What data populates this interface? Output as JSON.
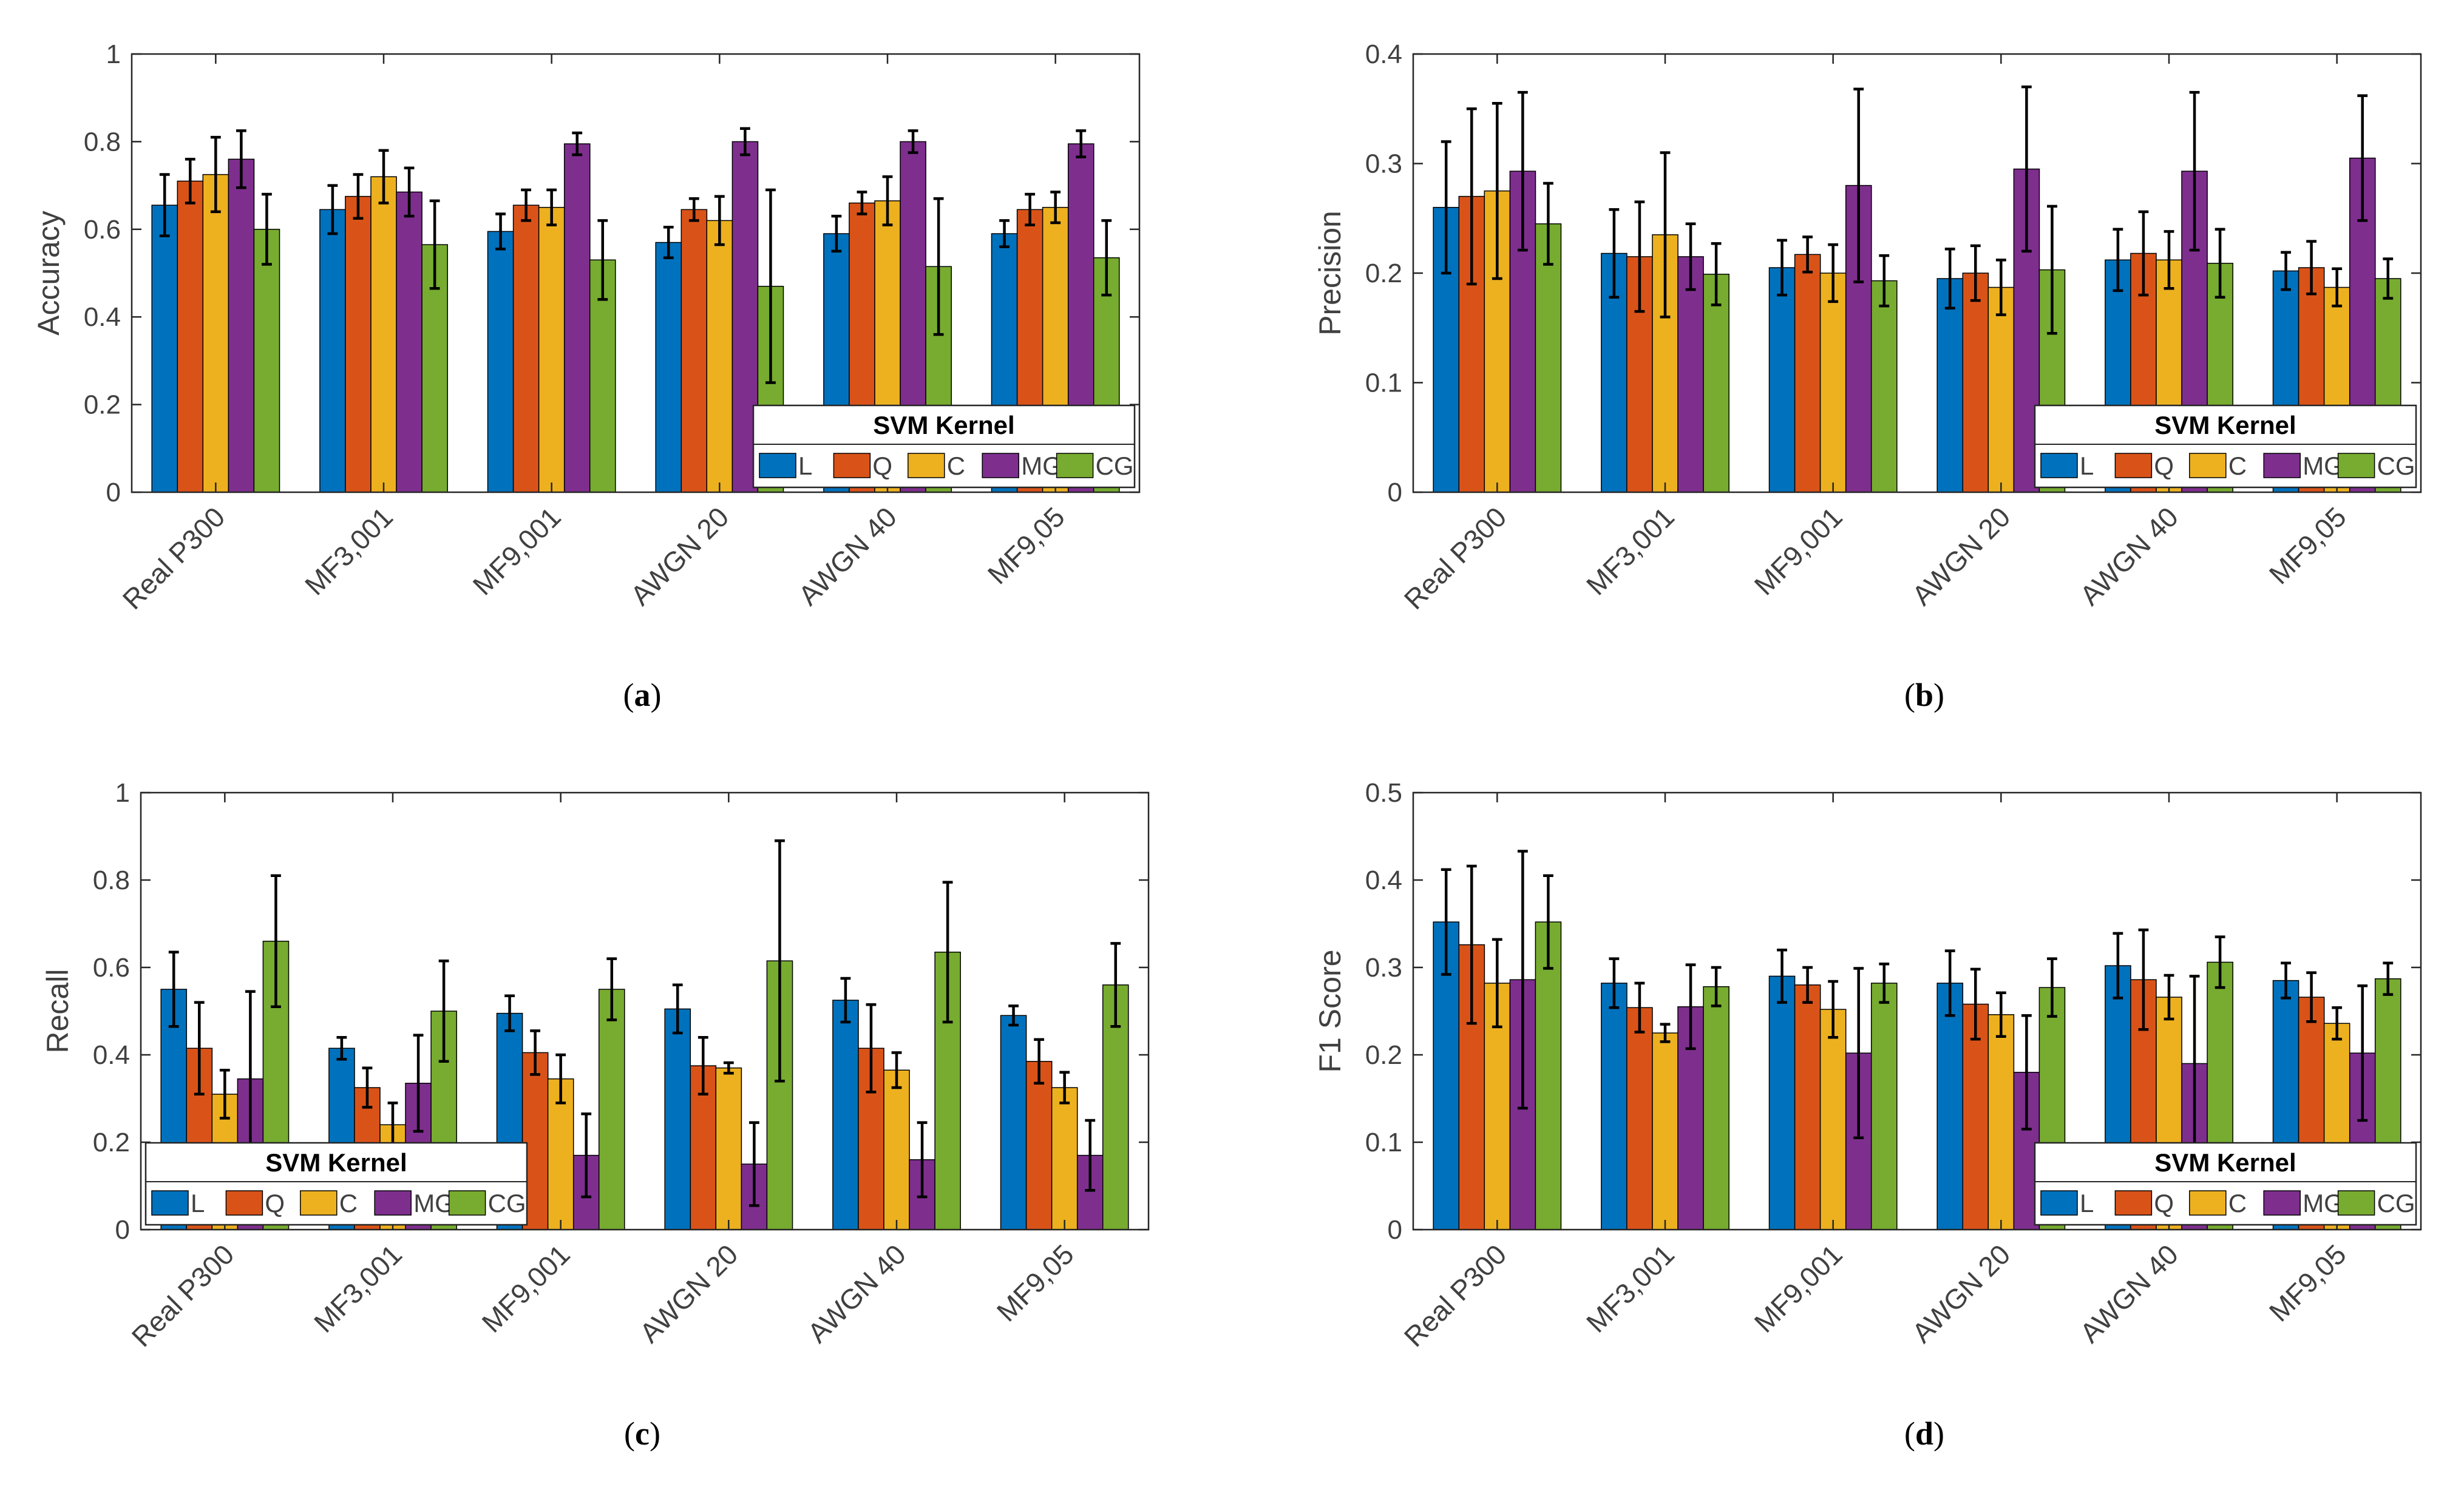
{
  "figure": {
    "legend_title": "SVM Kernel",
    "colors": {
      "L": "#0072BD",
      "Q": "#D95319",
      "C": "#EDB120",
      "MG": "#7E2F8E",
      "CG": "#77AC30",
      "axes_bg": "#ffffff",
      "axis": "#262626",
      "grid_text": "#404040"
    }
  },
  "chart_data": [
    {
      "type": "bar",
      "id": "a",
      "caption": "(a)",
      "caption_letter": "a",
      "ylabel": "Accuracy",
      "xlabel": "",
      "ylim": [
        0,
        1
      ],
      "yticks": [
        0,
        0.2,
        0.4,
        0.6,
        0.8,
        1
      ],
      "ytick_labels": [
        "0",
        "0.2",
        "0.4",
        "0.6",
        "0.8",
        "1"
      ],
      "categories": [
        "Real P300",
        "MF3,001",
        "MF9,001",
        "AWGN 20",
        "AWGN 40",
        "MF9,05"
      ],
      "legend": {
        "title": "SVM Kernel",
        "location": "bottom-right",
        "entries": [
          "L",
          "Q",
          "C",
          "MG",
          "CG"
        ]
      },
      "series": [
        {
          "name": "L",
          "values": [
            0.655,
            0.645,
            0.595,
            0.57,
            0.59,
            0.59
          ],
          "err": [
            0.07,
            0.055,
            0.04,
            0.035,
            0.04,
            0.03
          ]
        },
        {
          "name": "Q",
          "values": [
            0.71,
            0.675,
            0.655,
            0.645,
            0.66,
            0.645
          ],
          "err": [
            0.05,
            0.05,
            0.035,
            0.025,
            0.025,
            0.035
          ]
        },
        {
          "name": "C",
          "values": [
            0.725,
            0.72,
            0.65,
            0.62,
            0.665,
            0.65
          ],
          "err": [
            0.085,
            0.06,
            0.04,
            0.055,
            0.055,
            0.035
          ]
        },
        {
          "name": "MG",
          "values": [
            0.76,
            0.685,
            0.795,
            0.8,
            0.8,
            0.795
          ],
          "err": [
            0.065,
            0.055,
            0.025,
            0.03,
            0.025,
            0.03
          ]
        },
        {
          "name": "CG",
          "values": [
            0.6,
            0.565,
            0.53,
            0.47,
            0.515,
            0.535
          ],
          "err": [
            0.08,
            0.1,
            0.09,
            0.22,
            0.155,
            0.085
          ]
        }
      ]
    },
    {
      "type": "bar",
      "id": "b",
      "caption": "(b)",
      "caption_letter": "b",
      "ylabel": "Precision",
      "xlabel": "",
      "ylim": [
        0,
        0.4
      ],
      "yticks": [
        0,
        0.1,
        0.2,
        0.3,
        0.4
      ],
      "ytick_labels": [
        "0",
        "0.1",
        "0.2",
        "0.3",
        "0.4"
      ],
      "categories": [
        "Real P300",
        "MF3,001",
        "MF9,001",
        "AWGN 20",
        "AWGN 40",
        "MF9,05"
      ],
      "legend": {
        "title": "SVM Kernel",
        "location": "bottom-right",
        "entries": [
          "L",
          "Q",
          "C",
          "MG",
          "CG"
        ]
      },
      "series": [
        {
          "name": "L",
          "values": [
            0.26,
            0.218,
            0.205,
            0.195,
            0.212,
            0.202
          ],
          "err": [
            0.06,
            0.04,
            0.025,
            0.027,
            0.028,
            0.017
          ]
        },
        {
          "name": "Q",
          "values": [
            0.27,
            0.215,
            0.217,
            0.2,
            0.218,
            0.205
          ],
          "err": [
            0.08,
            0.05,
            0.016,
            0.025,
            0.038,
            0.024
          ]
        },
        {
          "name": "C",
          "values": [
            0.275,
            0.235,
            0.2,
            0.187,
            0.212,
            0.187
          ],
          "err": [
            0.08,
            0.075,
            0.026,
            0.025,
            0.026,
            0.017
          ]
        },
        {
          "name": "MG",
          "values": [
            0.293,
            0.215,
            0.28,
            0.295,
            0.293,
            0.305
          ],
          "err": [
            0.072,
            0.03,
            0.088,
            0.075,
            0.072,
            0.057
          ]
        },
        {
          "name": "CG",
          "values": [
            0.245,
            0.199,
            0.193,
            0.203,
            0.209,
            0.195
          ],
          "err": [
            0.037,
            0.028,
            0.023,
            0.058,
            0.031,
            0.018
          ]
        }
      ]
    },
    {
      "type": "bar",
      "id": "c",
      "caption": "(c)",
      "caption_letter": "c",
      "ylabel": "Recall",
      "xlabel": "",
      "ylim": [
        0,
        1
      ],
      "yticks": [
        0,
        0.2,
        0.4,
        0.6,
        0.8,
        1
      ],
      "ytick_labels": [
        "0",
        "0.2",
        "0.4",
        "0.6",
        "0.8",
        "1"
      ],
      "categories": [
        "Real P300",
        "MF3,001",
        "MF9,001",
        "AWGN 20",
        "AWGN 40",
        "MF9,05"
      ],
      "legend": {
        "title": "SVM Kernel",
        "location": "bottom-left",
        "entries": [
          "L",
          "Q",
          "C",
          "MG",
          "CG"
        ]
      },
      "series": [
        {
          "name": "L",
          "values": [
            0.55,
            0.415,
            0.495,
            0.505,
            0.525,
            0.49
          ],
          "err": [
            0.085,
            0.025,
            0.04,
            0.055,
            0.05,
            0.022
          ]
        },
        {
          "name": "Q",
          "values": [
            0.415,
            0.325,
            0.405,
            0.375,
            0.415,
            0.385
          ],
          "err": [
            0.105,
            0.045,
            0.05,
            0.065,
            0.1,
            0.05
          ]
        },
        {
          "name": "C",
          "values": [
            0.31,
            0.24,
            0.345,
            0.37,
            0.365,
            0.325
          ],
          "err": [
            0.055,
            0.05,
            0.055,
            0.012,
            0.04,
            0.035
          ]
        },
        {
          "name": "MG",
          "values": [
            0.345,
            0.335,
            0.17,
            0.15,
            0.16,
            0.17
          ],
          "err": [
            0.2,
            0.11,
            0.095,
            0.095,
            0.085,
            0.08
          ]
        },
        {
          "name": "CG",
          "values": [
            0.66,
            0.5,
            0.55,
            0.615,
            0.635,
            0.56
          ],
          "err": [
            0.15,
            0.115,
            0.07,
            0.275,
            0.16,
            0.095
          ]
        }
      ]
    },
    {
      "type": "bar",
      "id": "d",
      "caption": "(d)",
      "caption_letter": "d",
      "ylabel": "F1 Score",
      "xlabel": "",
      "ylim": [
        0,
        0.5
      ],
      "yticks": [
        0,
        0.1,
        0.2,
        0.3,
        0.4,
        0.5
      ],
      "ytick_labels": [
        "0",
        "0.1",
        "0.2",
        "0.3",
        "0.4",
        "0.5"
      ],
      "categories": [
        "Real P300",
        "MF3,001",
        "MF9,001",
        "AWGN 20",
        "AWGN 40",
        "MF9,05"
      ],
      "legend": {
        "title": "SVM Kernel",
        "location": "bottom-right",
        "entries": [
          "L",
          "Q",
          "C",
          "MG",
          "CG"
        ]
      },
      "series": [
        {
          "name": "L",
          "values": [
            0.352,
            0.282,
            0.29,
            0.282,
            0.302,
            0.285
          ],
          "err": [
            0.06,
            0.028,
            0.03,
            0.037,
            0.037,
            0.02
          ]
        },
        {
          "name": "Q",
          "values": [
            0.326,
            0.254,
            0.28,
            0.258,
            0.286,
            0.266
          ],
          "err": [
            0.09,
            0.028,
            0.02,
            0.04,
            0.057,
            0.028
          ]
        },
        {
          "name": "C",
          "values": [
            0.282,
            0.225,
            0.252,
            0.246,
            0.266,
            0.236
          ],
          "err": [
            0.05,
            0.01,
            0.032,
            0.025,
            0.025,
            0.018
          ]
        },
        {
          "name": "MG",
          "values": [
            0.286,
            0.255,
            0.202,
            0.18,
            0.19,
            0.202
          ],
          "err": [
            0.147,
            0.048,
            0.097,
            0.065,
            0.1,
            0.077
          ]
        },
        {
          "name": "CG",
          "values": [
            0.352,
            0.278,
            0.282,
            0.277,
            0.306,
            0.287
          ],
          "err": [
            0.053,
            0.022,
            0.022,
            0.033,
            0.029,
            0.018
          ]
        }
      ]
    }
  ]
}
